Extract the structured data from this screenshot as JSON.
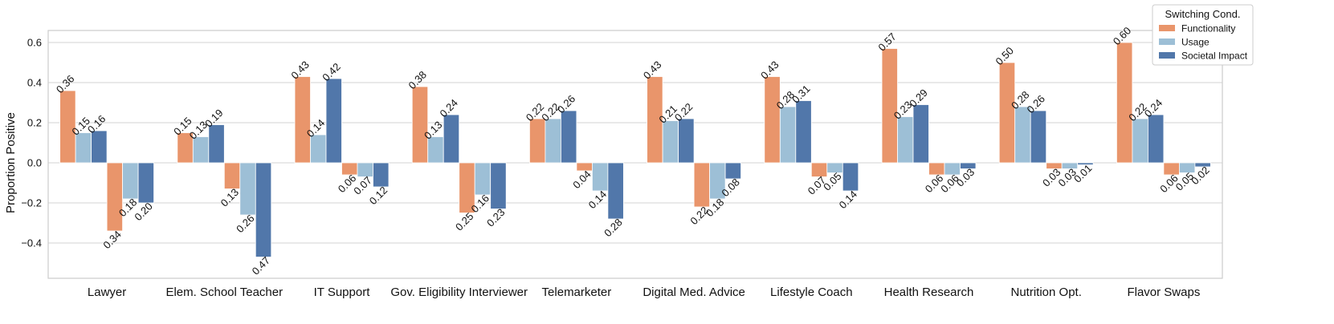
{
  "chart_data": {
    "type": "bar",
    "y_label": "Proportion Positive",
    "legend_title": "Switching Cond.",
    "legend_position": "upper right",
    "grid": true,
    "categories": [
      "Lawyer",
      "Elem. School Teacher",
      "IT Support",
      "Gov. Eligibility Interviewer",
      "Telemarketer",
      "Digital Med. Advice",
      "Lifestyle Coach",
      "Health Research",
      "Nutrition Opt.",
      "Flavor Swaps"
    ],
    "ylim": [
      -0.576,
      0.66
    ],
    "yticks": [
      {
        "value": -0.4,
        "label": "−0.4"
      },
      {
        "value": -0.2,
        "label": "−0.2"
      },
      {
        "value": 0,
        "label": "0.0"
      },
      {
        "value": 0.2,
        "label": "0.2"
      },
      {
        "value": 0.4,
        "label": "0.4"
      },
      {
        "value": 0.6,
        "label": "0.6"
      }
    ],
    "series": [
      {
        "name": "Functionality",
        "color": "#e9956b",
        "values": [
          0.36,
          0.15,
          0.43,
          0.38,
          0.22,
          0.43,
          0.43,
          0.57,
          0.5,
          0.6
        ],
        "value_labels": [
          "0.36",
          "0.15",
          "0.43",
          "0.38",
          "0.22",
          "0.43",
          "0.43",
          "0.57",
          "0.50",
          "0.60"
        ],
        "negative_values": [
          -0.34,
          -0.13,
          -0.06,
          -0.25,
          -0.04,
          -0.22,
          -0.07,
          -0.06,
          -0.03,
          -0.06
        ],
        "negative_value_labels": [
          "0.34",
          "0.13",
          "0.06",
          "0.25",
          "0.04",
          "0.22",
          "0.07",
          "0.06",
          "0.03",
          "0.06"
        ]
      },
      {
        "name": "Usage",
        "color": "#9dbfd6",
        "values": [
          0.15,
          0.13,
          0.14,
          0.13,
          0.22,
          0.21,
          0.28,
          0.23,
          0.28,
          0.22
        ],
        "value_labels": [
          "0.15",
          "0.13",
          "0.14",
          "0.13",
          "0.22",
          "0.21",
          "0.28",
          "0.23",
          "0.28",
          "0.22"
        ],
        "negative_values": [
          -0.18,
          -0.26,
          -0.07,
          -0.16,
          -0.14,
          -0.18,
          -0.05,
          -0.06,
          -0.03,
          -0.05
        ],
        "negative_value_labels": [
          "0.18",
          "0.26",
          "0.07",
          "0.16",
          "0.14",
          "0.18",
          "0.05",
          "0.06",
          "0.03",
          "0.05"
        ]
      },
      {
        "name": "Societal Impact",
        "color": "#5177aa",
        "values": [
          0.16,
          0.19,
          0.42,
          0.24,
          0.26,
          0.22,
          0.31,
          0.29,
          0.26,
          0.24
        ],
        "value_labels": [
          "0.16",
          "0.19",
          "0.42",
          "0.24",
          "0.26",
          "0.22",
          "0.31",
          "0.29",
          "0.26",
          "0.24"
        ],
        "negative_values": [
          -0.2,
          -0.47,
          -0.12,
          -0.23,
          -0.28,
          -0.08,
          -0.14,
          -0.03,
          -0.01,
          -0.02
        ],
        "negative_value_labels": [
          "0.20",
          "0.47",
          "0.12",
          "0.23",
          "0.28",
          "0.08",
          "0.14",
          "0.03",
          "0.01",
          "0.02"
        ]
      }
    ]
  }
}
